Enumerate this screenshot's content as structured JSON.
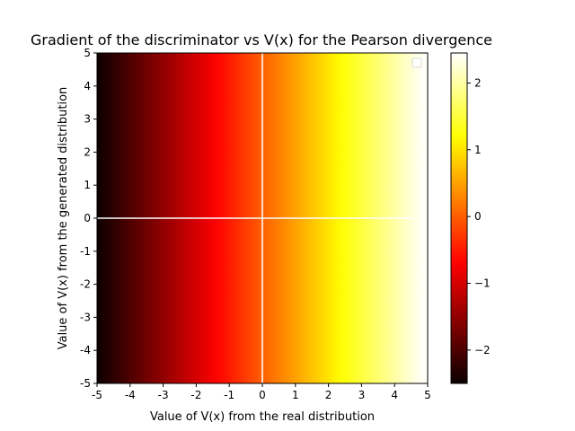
{
  "chart_data": {
    "type": "heatmap",
    "title": "Gradient of the discriminator vs V(x) for the Pearson divergence",
    "xlabel": "Value of V(x) from the real distribution",
    "ylabel": "Value of V(x) from the generated distribution",
    "xlim": [
      -5,
      5
    ],
    "ylim": [
      -5,
      5
    ],
    "x_ticks": [
      -5,
      -4,
      -3,
      -2,
      -1,
      0,
      1,
      2,
      3,
      4,
      5
    ],
    "x_tick_labels": [
      "-5",
      "-4",
      "-3",
      "-2",
      "-1",
      "0",
      "1",
      "2",
      "3",
      "4",
      "5"
    ],
    "y_ticks": [
      -5,
      -4,
      -3,
      -2,
      -1,
      0,
      1,
      2,
      3,
      4,
      5
    ],
    "y_tick_labels": [
      "-5",
      "-4",
      "-3",
      "-2",
      "-1",
      "0",
      "1",
      "2",
      "3",
      "4",
      "5"
    ],
    "colormap": "hot",
    "value_function": "value = x / 2 (constant along y)",
    "color_range": [
      -2.5,
      2.45
    ],
    "colorbar_ticks": [
      -2,
      -1,
      0,
      1,
      2
    ],
    "colorbar_tick_labels": [
      "−2",
      "−1",
      "0",
      "1",
      "2"
    ],
    "reference_lines": [
      {
        "orientation": "vertical",
        "value": 0,
        "color": "#ffffff"
      },
      {
        "orientation": "horizontal",
        "value": 0,
        "color": "#ffffff"
      }
    ],
    "legend": {
      "placement": "top-right",
      "entries": []
    },
    "grid": false
  }
}
